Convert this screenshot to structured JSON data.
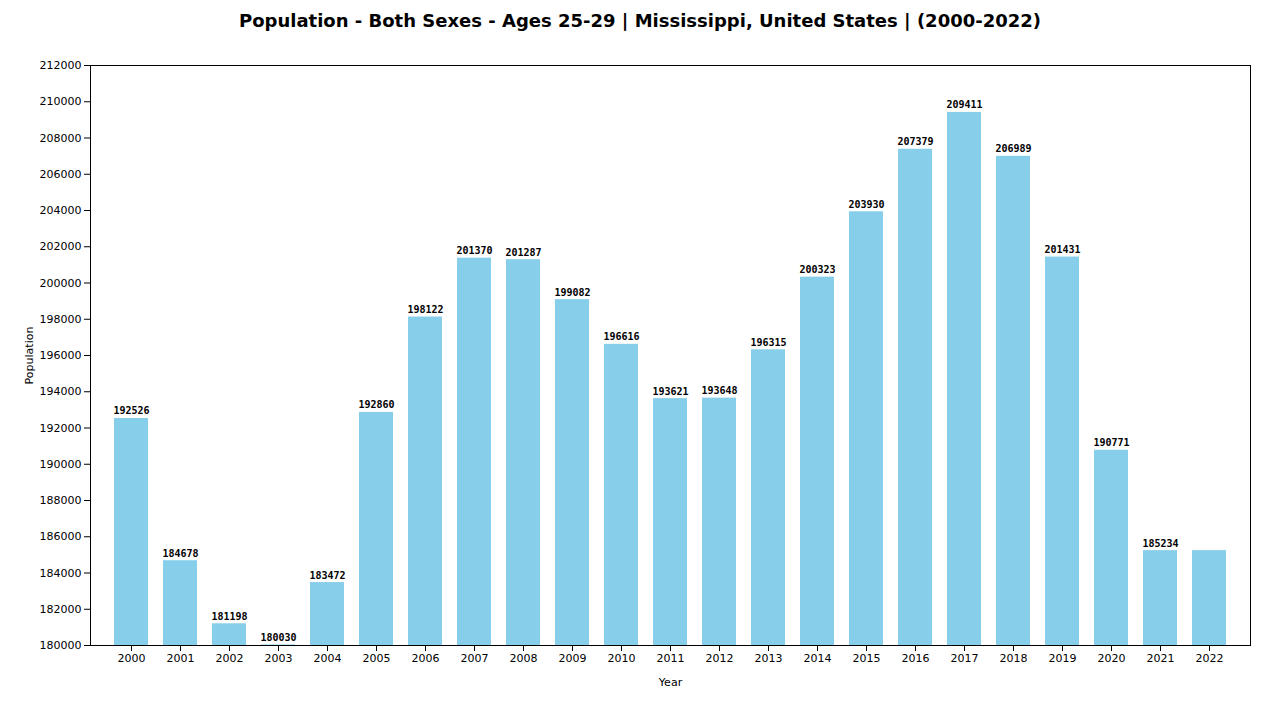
{
  "chart_data": {
    "type": "bar",
    "title": "Population - Both Sexes - Ages 25-29 | Mississippi, United States |  (2000-2022)",
    "xlabel": "Year",
    "ylabel": "Population",
    "categories": [
      "2000",
      "2001",
      "2002",
      "2003",
      "2004",
      "2005",
      "2006",
      "2007",
      "2008",
      "2009",
      "2010",
      "2011",
      "2012",
      "2013",
      "2014",
      "2015",
      "2016",
      "2017",
      "2018",
      "2019",
      "2020",
      "2021",
      "2022"
    ],
    "values": [
      192526,
      184678,
      181198,
      180030,
      183472,
      192860,
      198122,
      201370,
      201287,
      199082,
      196616,
      193621,
      193648,
      196315,
      200323,
      203930,
      207379,
      209411,
      206989,
      201431,
      190771,
      185234,
      185234
    ],
    "value_labels": [
      "192526",
      "184678",
      "181198",
      "180030",
      "183472",
      "192860",
      "198122",
      "201370",
      "201287",
      "199082",
      "196616",
      "193621",
      "193648",
      "196315",
      "200323",
      "203930",
      "207379",
      "209411",
      "206989",
      "201431",
      "190771",
      "185234",
      null
    ],
    "color": "#87ceeb",
    "ylim": [
      180000,
      212000
    ],
    "yticks": [
      180000,
      182000,
      184000,
      186000,
      188000,
      190000,
      192000,
      194000,
      196000,
      198000,
      200000,
      202000,
      204000,
      206000,
      208000,
      210000,
      212000
    ],
    "grid": false,
    "data_labels": true
  }
}
